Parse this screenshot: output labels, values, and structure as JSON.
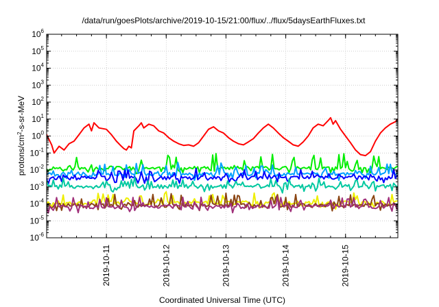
{
  "chart_data": {
    "type": "line",
    "title": "/data/run/goesPlots/archive/2019-10-15/21:00/flux/../flux/5daysEarthFluxes.txt",
    "xlabel": "Coordinated Universal Time (UTC)",
    "ylabel": {
      "prefix": "protons/cm",
      "sup": "2",
      "suffix": "-s-sr-MeV"
    },
    "yscale": "log",
    "ylim_exponents": [
      -6,
      6
    ],
    "y_ticks": [
      {
        "base": "10",
        "exp": "6"
      },
      {
        "base": "10",
        "exp": "5"
      },
      {
        "base": "10",
        "exp": "4"
      },
      {
        "base": "10",
        "exp": "3"
      },
      {
        "base": "10",
        "exp": "2"
      },
      {
        "base": "10",
        "exp": "1"
      },
      {
        "base": "10",
        "exp": "0"
      },
      {
        "base": "10",
        "exp": "-1"
      },
      {
        "base": "10",
        "exp": "-2"
      },
      {
        "base": "10",
        "exp": "-3"
      },
      {
        "base": "10",
        "exp": "-4"
      },
      {
        "base": "10",
        "exp": "-5"
      },
      {
        "base": "10",
        "exp": "-6"
      }
    ],
    "xlim": [
      "2019-10-10T00:00",
      "2019-10-15T21:00"
    ],
    "x_ticks": [
      "2019-10-11",
      "2019-10-12",
      "2019-10-13",
      "2019-10-14",
      "2019-10-15"
    ],
    "grid": true,
    "series": [
      {
        "color": "#ff0000",
        "points": [
          [
            "2019-10-10T00:00",
            1.2
          ],
          [
            "2019-10-10T02:00",
            0.3
          ],
          [
            "2019-10-10T03:00",
            0.1
          ],
          [
            "2019-10-10T05:00",
            0.25
          ],
          [
            "2019-10-10T07:00",
            0.15
          ],
          [
            "2019-10-10T09:00",
            0.35
          ],
          [
            "2019-10-10T11:00",
            0.5
          ],
          [
            "2019-10-10T13:00",
            1.2
          ],
          [
            "2019-10-10T15:00",
            3
          ],
          [
            "2019-10-10T17:00",
            5
          ],
          [
            "2019-10-10T18:00",
            2
          ],
          [
            "2019-10-10T19:00",
            6
          ],
          [
            "2019-10-10T21:00",
            3
          ],
          [
            "2019-10-11T00:00",
            2.5
          ],
          [
            "2019-10-11T02:00",
            1.2
          ],
          [
            "2019-10-11T04:00",
            0.5
          ],
          [
            "2019-10-11T06:00",
            0.25
          ],
          [
            "2019-10-11T07:00",
            0.18
          ],
          [
            "2019-10-11T08:00",
            0.15
          ],
          [
            "2019-10-11T09:00",
            0.25
          ],
          [
            "2019-10-11T10:00",
            0.2
          ],
          [
            "2019-10-11T11:00",
            2
          ],
          [
            "2019-10-11T13:00",
            4
          ],
          [
            "2019-10-11T14:00",
            6
          ],
          [
            "2019-10-11T15:00",
            3
          ],
          [
            "2019-10-11T17:00",
            5
          ],
          [
            "2019-10-11T19:00",
            4
          ],
          [
            "2019-10-11T21:00",
            2
          ],
          [
            "2019-10-11T23:00",
            1.5
          ],
          [
            "2019-10-12T01:00",
            0.8
          ],
          [
            "2019-10-12T03:00",
            0.5
          ],
          [
            "2019-10-12T05:00",
            0.35
          ],
          [
            "2019-10-12T07:00",
            0.28
          ],
          [
            "2019-10-12T09:00",
            0.3
          ],
          [
            "2019-10-12T11:00",
            0.25
          ],
          [
            "2019-10-12T13:00",
            0.4
          ],
          [
            "2019-10-12T15:00",
            1
          ],
          [
            "2019-10-12T17:00",
            2.5
          ],
          [
            "2019-10-12T19:00",
            3.5
          ],
          [
            "2019-10-12T21:00",
            2
          ],
          [
            "2019-10-12T23:00",
            1.5
          ],
          [
            "2019-10-13T01:00",
            0.8
          ],
          [
            "2019-10-13T03:00",
            0.5
          ],
          [
            "2019-10-13T05:00",
            0.35
          ],
          [
            "2019-10-13T07:00",
            0.3
          ],
          [
            "2019-10-13T09:00",
            0.45
          ],
          [
            "2019-10-13T11:00",
            0.7
          ],
          [
            "2019-10-13T13:00",
            1.5
          ],
          [
            "2019-10-13T15:00",
            3
          ],
          [
            "2019-10-13T17:00",
            5
          ],
          [
            "2019-10-13T19:00",
            3
          ],
          [
            "2019-10-13T21:00",
            1.5
          ],
          [
            "2019-10-13T23:00",
            0.8
          ],
          [
            "2019-10-14T01:00",
            0.5
          ],
          [
            "2019-10-14T03:00",
            0.3
          ],
          [
            "2019-10-14T05:00",
            0.25
          ],
          [
            "2019-10-14T07:00",
            0.45
          ],
          [
            "2019-10-14T09:00",
            1
          ],
          [
            "2019-10-14T11:00",
            3
          ],
          [
            "2019-10-14T13:00",
            5
          ],
          [
            "2019-10-14T15:00",
            4
          ],
          [
            "2019-10-14T17:00",
            8
          ],
          [
            "2019-10-14T18:00",
            12
          ],
          [
            "2019-10-14T19:00",
            5
          ],
          [
            "2019-10-14T20:00",
            8
          ],
          [
            "2019-10-14T22:00",
            2.5
          ],
          [
            "2019-10-15T00:00",
            1
          ],
          [
            "2019-10-15T02:00",
            0.4
          ],
          [
            "2019-10-15T04:00",
            0.15
          ],
          [
            "2019-10-15T06:00",
            0.08
          ],
          [
            "2019-10-15T08:00",
            0.07
          ],
          [
            "2019-10-15T10:00",
            0.12
          ],
          [
            "2019-10-15T12:00",
            0.5
          ],
          [
            "2019-10-15T14:00",
            1.5
          ],
          [
            "2019-10-15T16:00",
            3
          ],
          [
            "2019-10-15T18:00",
            5
          ],
          [
            "2019-10-15T20:00",
            7
          ],
          [
            "2019-10-15T21:00",
            10
          ]
        ]
      },
      {
        "color": "#00ee00",
        "baseline": 0.013,
        "spike_amplitude": 6,
        "seed": 11
      },
      {
        "color": "#00a0ff",
        "baseline": 0.006,
        "spike_amplitude": 4,
        "seed": 23
      },
      {
        "color": "#0000ff",
        "baseline": 0.0035,
        "spike_amplitude": 3,
        "seed": 37
      },
      {
        "color": "#00c8a0",
        "baseline": 0.0011,
        "spike_amplitude": 3,
        "seed": 51
      },
      {
        "color": "#eeee00",
        "baseline": 0.00012,
        "spike_amplitude": 4,
        "seed": 67
      },
      {
        "color": "#8b4513",
        "baseline": 8.5e-05,
        "spike_amplitude": 5,
        "seed": 79
      },
      {
        "color": "#a0307a",
        "baseline": 7e-05,
        "spike_amplitude": 4,
        "seed": 91
      }
    ]
  }
}
